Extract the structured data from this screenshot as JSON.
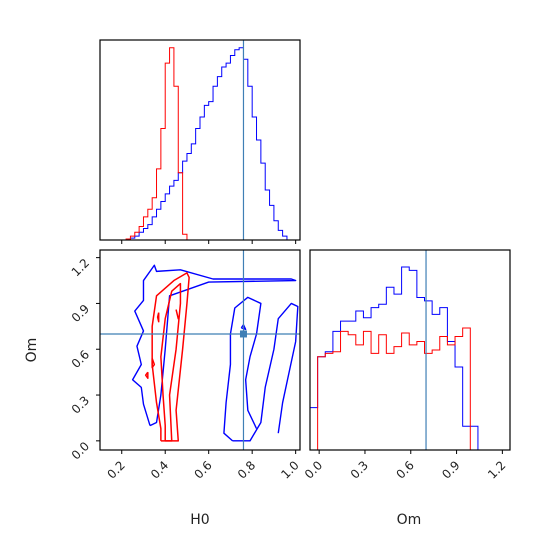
{
  "chart_data": {
    "type": "corner",
    "parameters": [
      "H0",
      "Om"
    ],
    "truths": {
      "H0": 0.76,
      "Om": 0.7
    },
    "truth_color": "#3f7fb5",
    "series": [
      {
        "color": "#ff0000"
      },
      {
        "color": "#0000ff"
      }
    ],
    "panels": {
      "H0_hist": {
        "xlim": [
          0.1,
          1.02
        ],
        "bin_edges": [
          0.1,
          0.12,
          0.14,
          0.16,
          0.18,
          0.2,
          0.22,
          0.24,
          0.26,
          0.28,
          0.3,
          0.32,
          0.34,
          0.36,
          0.38,
          0.4,
          0.42,
          0.44,
          0.46,
          0.48,
          0.5,
          0.52,
          0.54,
          0.56,
          0.58,
          0.6,
          0.62,
          0.64,
          0.66,
          0.68,
          0.7,
          0.72,
          0.74,
          0.76,
          0.78,
          0.8,
          0.82,
          0.84,
          0.86,
          0.88,
          0.9,
          0.92,
          0.94,
          0.96,
          0.98,
          1.0
        ],
        "red": [
          0,
          0,
          0,
          0,
          0,
          0,
          0.5,
          2,
          4,
          7,
          12,
          16,
          22,
          37,
          58,
          92,
          100,
          80,
          35,
          3,
          0,
          0,
          0,
          0,
          0,
          0,
          0,
          0,
          0,
          0,
          0,
          0,
          0,
          0,
          0,
          0,
          0,
          0,
          0,
          0,
          0,
          0,
          0,
          0,
          0
        ],
        "blue": [
          0,
          0,
          0,
          0,
          0,
          0,
          0,
          1,
          2,
          4,
          6,
          8,
          12,
          16,
          20,
          24,
          28,
          31,
          35,
          41,
          45,
          50,
          58,
          64,
          70,
          72,
          80,
          85,
          90,
          92,
          96,
          99,
          100,
          94,
          80,
          64,
          52,
          40,
          26,
          18,
          10,
          5,
          2,
          0,
          0
        ]
      },
      "Om_hist": {
        "xlim": [
          -0.06,
          1.25
        ],
        "bin_edges": [
          -0.06,
          -0.01,
          0.04,
          0.09,
          0.14,
          0.19,
          0.24,
          0.29,
          0.34,
          0.39,
          0.44,
          0.49,
          0.54,
          0.59,
          0.64,
          0.69,
          0.74,
          0.79,
          0.84,
          0.89,
          0.94,
          0.99,
          1.04,
          1.09,
          1.14,
          1.19
        ],
        "red": [
          0,
          55,
          57,
          58,
          70,
          68,
          62,
          70,
          57,
          68,
          57,
          61,
          69,
          62,
          64,
          57,
          59,
          67,
          62,
          67,
          72,
          0,
          0,
          0,
          0
        ],
        "blue": [
          25,
          55,
          58,
          70,
          76,
          76,
          82,
          78,
          84,
          86,
          96,
          92,
          108,
          106,
          90,
          88,
          80,
          84,
          64,
          49,
          14,
          14,
          0,
          0,
          0
        ]
      },
      "joint": {
        "xlim": [
          0.1,
          1.02
        ],
        "ylim": [
          -0.06,
          1.25
        ],
        "red_contours": [
          [
            [
              0.38,
              0.0
            ],
            [
              0.4,
              0.0
            ],
            [
              0.44,
              0.0
            ],
            [
              0.46,
              0.0
            ],
            [
              0.45,
              0.2
            ],
            [
              0.48,
              0.6
            ],
            [
              0.5,
              0.9
            ],
            [
              0.51,
              1.07
            ],
            [
              0.5,
              1.1
            ],
            [
              0.44,
              1.05
            ],
            [
              0.36,
              0.95
            ],
            [
              0.34,
              0.75
            ],
            [
              0.34,
              0.5
            ],
            [
              0.36,
              0.25
            ],
            [
              0.38,
              0.08
            ],
            [
              0.38,
              0.0
            ]
          ],
          [
            [
              0.4,
              0.0
            ],
            [
              0.43,
              0.0
            ],
            [
              0.42,
              0.3
            ],
            [
              0.45,
              0.6
            ],
            [
              0.47,
              0.9
            ],
            [
              0.47,
              1.03
            ],
            [
              0.43,
              0.98
            ],
            [
              0.4,
              0.8
            ],
            [
              0.38,
              0.55
            ],
            [
              0.39,
              0.3
            ],
            [
              0.4,
              0.1
            ],
            [
              0.4,
              0.0
            ]
          ],
          [
            [
              0.34,
              0.54
            ],
            [
              0.35,
              0.5
            ],
            [
              0.34,
              0.48
            ],
            [
              0.34,
              0.54
            ]
          ],
          [
            [
              0.32,
              0.45
            ],
            [
              0.32,
              0.41
            ],
            [
              0.31,
              0.43
            ],
            [
              0.32,
              0.45
            ]
          ],
          [
            [
              0.37,
              0.84
            ],
            [
              0.37,
              0.78
            ],
            [
              0.365,
              0.81
            ],
            [
              0.37,
              0.84
            ]
          ],
          [
            [
              0.45,
              0.86
            ],
            [
              0.46,
              0.8
            ],
            [
              0.455,
              0.83
            ],
            [
              0.45,
              0.86
            ]
          ]
        ],
        "blue_contours": [
          [
            [
              0.33,
              0.1
            ],
            [
              0.36,
              0.12
            ],
            [
              0.38,
              0.3
            ],
            [
              0.4,
              0.6
            ],
            [
              0.42,
              0.95
            ],
            [
              0.52,
              1.0
            ],
            [
              0.6,
              1.04
            ],
            [
              1.0,
              1.05
            ],
            [
              0.98,
              1.06
            ],
            [
              0.62,
              1.06
            ],
            [
              0.47,
              1.12
            ],
            [
              0.36,
              1.11
            ],
            [
              0.35,
              1.15
            ],
            [
              0.3,
              1.05
            ],
            [
              0.3,
              0.92
            ],
            [
              0.26,
              0.85
            ],
            [
              0.3,
              0.72
            ],
            [
              0.27,
              0.62
            ],
            [
              0.29,
              0.5
            ],
            [
              0.25,
              0.4
            ],
            [
              0.29,
              0.35
            ],
            [
              0.3,
              0.24
            ],
            [
              0.33,
              0.1
            ]
          ],
          [
            [
              0.71,
              0.0
            ],
            [
              0.79,
              0.0
            ],
            [
              0.84,
              0.12
            ],
            [
              0.86,
              0.35
            ],
            [
              0.9,
              0.6
            ],
            [
              0.92,
              0.8
            ],
            [
              0.98,
              0.9
            ],
            [
              1.01,
              0.88
            ],
            [
              1.0,
              0.65
            ],
            [
              0.97,
              0.45
            ],
            [
              0.94,
              0.25
            ],
            [
              0.92,
              0.05
            ]
          ],
          [
            [
              0.71,
              0.0
            ],
            [
              0.67,
              0.05
            ],
            [
              0.68,
              0.25
            ],
            [
              0.7,
              0.5
            ],
            [
              0.7,
              0.7
            ],
            [
              0.72,
              0.87
            ],
            [
              0.78,
              0.94
            ],
            [
              0.84,
              0.9
            ],
            [
              0.82,
              0.7
            ],
            [
              0.79,
              0.55
            ],
            [
              0.77,
              0.4
            ],
            [
              0.78,
              0.2
            ],
            [
              0.82,
              0.08
            ]
          ],
          [
            [
              0.75,
              0.74
            ],
            [
              0.77,
              0.73
            ],
            [
              0.76,
              0.76
            ],
            [
              0.75,
              0.74
            ]
          ]
        ]
      }
    },
    "xticks_H0": [
      "0.2",
      "0.4",
      "0.6",
      "0.8",
      "1.0"
    ],
    "yticks_Om": [
      "0.0",
      "0.3",
      "0.6",
      "0.9",
      "1.2"
    ],
    "xticks_Om": [
      "0.0",
      "0.3",
      "0.6",
      "0.9",
      "1.2"
    ],
    "xlabel_H0": "H0",
    "ylabel_Om": "Om",
    "xlabel_Om": "Om"
  }
}
